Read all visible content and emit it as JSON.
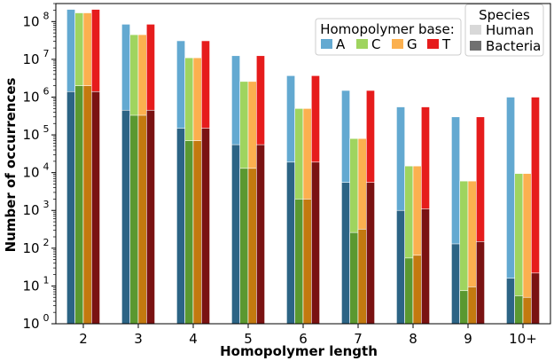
{
  "chart_data": {
    "type": "bar",
    "stacked_overlay": true,
    "xlabel": "Homopolymer length",
    "ylabel": "Number of occurrences",
    "yscale": "log",
    "ylim": [
      1,
      300000000
    ],
    "yticks": [
      {
        "value": 1,
        "label": "10",
        "exp": "0"
      },
      {
        "value": 10,
        "label": "10",
        "exp": "1"
      },
      {
        "value": 100,
        "label": "10",
        "exp": "2"
      },
      {
        "value": 1000,
        "label": "10",
        "exp": "3"
      },
      {
        "value": 10000,
        "label": "10",
        "exp": "4"
      },
      {
        "value": 100000,
        "label": "10",
        "exp": "5"
      },
      {
        "value": 1000000,
        "label": "10",
        "exp": "6"
      },
      {
        "value": 10000000,
        "label": "10",
        "exp": "7"
      },
      {
        "value": 100000000,
        "label": "10",
        "exp": "8"
      }
    ],
    "categories": [
      "2",
      "3",
      "4",
      "5",
      "6",
      "7",
      "8",
      "9",
      "10+"
    ],
    "legend_base": {
      "title": "Homopolymer base:",
      "placement": "top-right",
      "entries": [
        {
          "label": "A",
          "color": "#63a9d1"
        },
        {
          "label": "C",
          "color": "#9fd45f"
        },
        {
          "label": "G",
          "color": "#fbb04f"
        },
        {
          "label": "T",
          "color": "#e61c1c"
        }
      ]
    },
    "legend_species": {
      "title": "Species",
      "placement": "top-right",
      "entries": [
        {
          "label": "Human",
          "color": "#d8d8d8"
        },
        {
          "label": "Bacteria",
          "color": "#707070"
        }
      ]
    },
    "series": [
      {
        "base": "A",
        "human_color": "#63a9d1",
        "bacteria_color": "#2c6485",
        "human": [
          210000000,
          85000000,
          31000000,
          12500000,
          3700000,
          1500000,
          550000,
          300000,
          1000000
        ],
        "bacteria": [
          1400000,
          450000,
          150000,
          55000,
          19000,
          5500,
          1000,
          130,
          16
        ]
      },
      {
        "base": "C",
        "human_color": "#9fd45f",
        "bacteria_color": "#5a9830",
        "human": [
          170000000,
          45000000,
          11000000,
          2600000,
          500000,
          80000,
          15000,
          6000,
          9500
        ],
        "bacteria": [
          2000000,
          330000,
          70000,
          13000,
          2000,
          260,
          55,
          7.5,
          5.5
        ]
      },
      {
        "base": "G",
        "human_color": "#fbb04f",
        "bacteria_color": "#c3790f",
        "human": [
          170000000,
          45000000,
          11000000,
          2600000,
          500000,
          80000,
          15000,
          6000,
          9500
        ],
        "bacteria": [
          2000000,
          330000,
          70000,
          13000,
          2000,
          320,
          65,
          9.5,
          5
        ]
      },
      {
        "base": "T",
        "human_color": "#e61c1c",
        "bacteria_color": "#7a1212",
        "human": [
          210000000,
          85000000,
          31000000,
          12500000,
          3700000,
          1500000,
          550000,
          300000,
          1000000
        ],
        "bacteria": [
          1400000,
          450000,
          150000,
          55000,
          19000,
          5500,
          1100,
          150,
          22
        ]
      }
    ]
  }
}
